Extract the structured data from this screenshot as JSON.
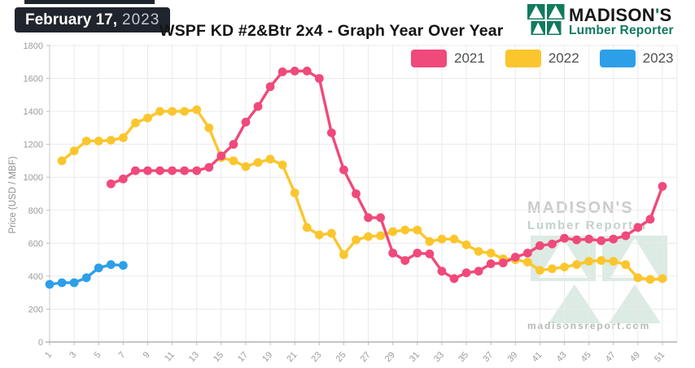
{
  "header": {
    "date_badge": {
      "date": "February 17,",
      "year": "2023"
    },
    "title": "WSPF KD #2&Btr 2x4 - Graph Year Over Year",
    "logo": {
      "name_pre": "MADISON",
      "apostrophe": "'",
      "name_post": "S",
      "subtitle": "Lumber Reporter",
      "green": "#127a5e"
    }
  },
  "legend": [
    {
      "label": "2021",
      "color": "#f0497b"
    },
    {
      "label": "2022",
      "color": "#fbc62d"
    },
    {
      "label": "2023",
      "color": "#2d9fe8"
    }
  ],
  "watermark": {
    "line1": "MADISON'S",
    "line2": "Lumber Reporter",
    "url": "madisonsreport.com"
  },
  "chart_data": {
    "type": "line",
    "title": "WSPF KD #2&Btr 2x4 - Graph Year Over Year",
    "xlabel": "",
    "ylabel": "Price (USD / MBF)",
    "grid": true,
    "legend_position": "top-right",
    "x_axis": {
      "unit": "week",
      "min": 1,
      "max": 52,
      "ticks": [
        1,
        3,
        5,
        7,
        9,
        11,
        13,
        15,
        17,
        19,
        21,
        23,
        25,
        27,
        29,
        31,
        33,
        35,
        37,
        39,
        41,
        43,
        45,
        47,
        49,
        51
      ]
    },
    "y_axis": {
      "min": 0,
      "max": 1800,
      "tick_step": 200,
      "ticks": [
        0,
        200,
        400,
        600,
        800,
        1000,
        1200,
        1400,
        1600,
        1800
      ]
    },
    "series": [
      {
        "name": "2021",
        "color": "#f0497b",
        "start_week": 6,
        "values": [
          960,
          990,
          1040,
          1040,
          1040,
          1040,
          1040,
          1040,
          1060,
          1130,
          1200,
          1335,
          1430,
          1550,
          1640,
          1645,
          1645,
          1600,
          1270,
          1045,
          900,
          755,
          755,
          540,
          495,
          540,
          535,
          430,
          385,
          420,
          430,
          475,
          480,
          515,
          540,
          585,
          595,
          630,
          620,
          625,
          615,
          625,
          645,
          695,
          745,
          945
        ]
      },
      {
        "name": "2022",
        "color": "#fbc62d",
        "start_week": 2,
        "values": [
          1100,
          1160,
          1220,
          1220,
          1225,
          1240,
          1330,
          1360,
          1400,
          1400,
          1400,
          1410,
          1300,
          1120,
          1100,
          1065,
          1090,
          1110,
          1075,
          905,
          695,
          650,
          660,
          530,
          620,
          640,
          645,
          670,
          680,
          680,
          610,
          625,
          625,
          590,
          550,
          540,
          505,
          500,
          485,
          435,
          445,
          455,
          470,
          490,
          495,
          490,
          470,
          390,
          380,
          385
        ]
      },
      {
        "name": "2023",
        "color": "#2d9fe8",
        "start_week": 1,
        "values": [
          350,
          360,
          360,
          390,
          450,
          470,
          465
        ]
      }
    ]
  }
}
